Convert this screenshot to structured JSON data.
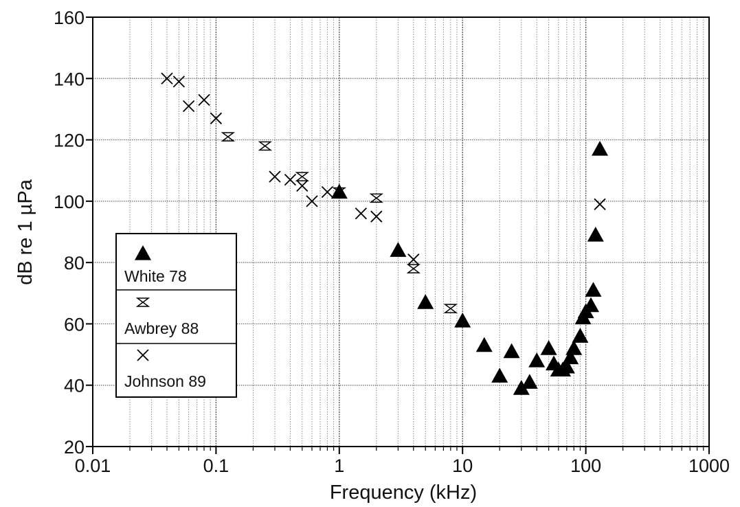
{
  "chart_data": {
    "type": "scatter",
    "title": "",
    "xlabel": "Frequency (kHz)",
    "ylabel": "dB re 1 µPa",
    "x_scale": "log",
    "xlim": [
      0.01,
      1000
    ],
    "ylim": [
      20,
      160
    ],
    "x_ticks": [
      0.01,
      0.1,
      1,
      10,
      100,
      1000
    ],
    "x_tick_labels": [
      "0.01",
      "0.1",
      "1",
      "10",
      "100",
      "1000"
    ],
    "y_ticks": [
      20,
      40,
      60,
      80,
      100,
      120,
      140,
      160
    ],
    "y_tick_labels": [
      "20",
      "40",
      "60",
      "80",
      "100",
      "120",
      "140",
      "160"
    ],
    "grid": true,
    "legend_position": "left",
    "series": [
      {
        "name": "White 78",
        "marker": "filled-triangle",
        "color": "#000000",
        "points": [
          [
            1.0,
            103
          ],
          [
            3.0,
            84
          ],
          [
            5.0,
            67
          ],
          [
            10.0,
            61
          ],
          [
            15.0,
            53
          ],
          [
            20.0,
            43
          ],
          [
            25.0,
            51
          ],
          [
            30.0,
            39
          ],
          [
            35.0,
            41
          ],
          [
            40.0,
            48
          ],
          [
            50.0,
            52
          ],
          [
            55.0,
            47
          ],
          [
            60.0,
            45
          ],
          [
            65.0,
            45
          ],
          [
            70.0,
            46
          ],
          [
            75.0,
            49
          ],
          [
            80.0,
            52
          ],
          [
            90.0,
            56
          ],
          [
            95.0,
            62
          ],
          [
            100.0,
            64
          ],
          [
            110.0,
            66
          ],
          [
            115.0,
            71
          ],
          [
            120.0,
            89
          ],
          [
            130.0,
            117
          ]
        ]
      },
      {
        "name": "Awbrey 88",
        "marker": "hourglass",
        "color": "#000000",
        "points": [
          [
            0.125,
            121
          ],
          [
            0.25,
            118
          ],
          [
            0.5,
            108
          ],
          [
            1.0,
            103
          ],
          [
            2.0,
            101
          ],
          [
            4.0,
            78
          ],
          [
            8.0,
            65
          ]
        ]
      },
      {
        "name": "Johnson 89",
        "marker": "x",
        "color": "#000000",
        "points": [
          [
            0.04,
            140
          ],
          [
            0.05,
            139
          ],
          [
            0.06,
            131
          ],
          [
            0.08,
            133
          ],
          [
            0.1,
            127
          ],
          [
            0.3,
            108
          ],
          [
            0.4,
            107
          ],
          [
            0.5,
            105
          ],
          [
            0.6,
            100
          ],
          [
            0.8,
            103
          ],
          [
            1.5,
            96
          ],
          [
            2.0,
            95
          ],
          [
            4.0,
            81
          ],
          [
            130.0,
            99
          ]
        ]
      }
    ]
  }
}
